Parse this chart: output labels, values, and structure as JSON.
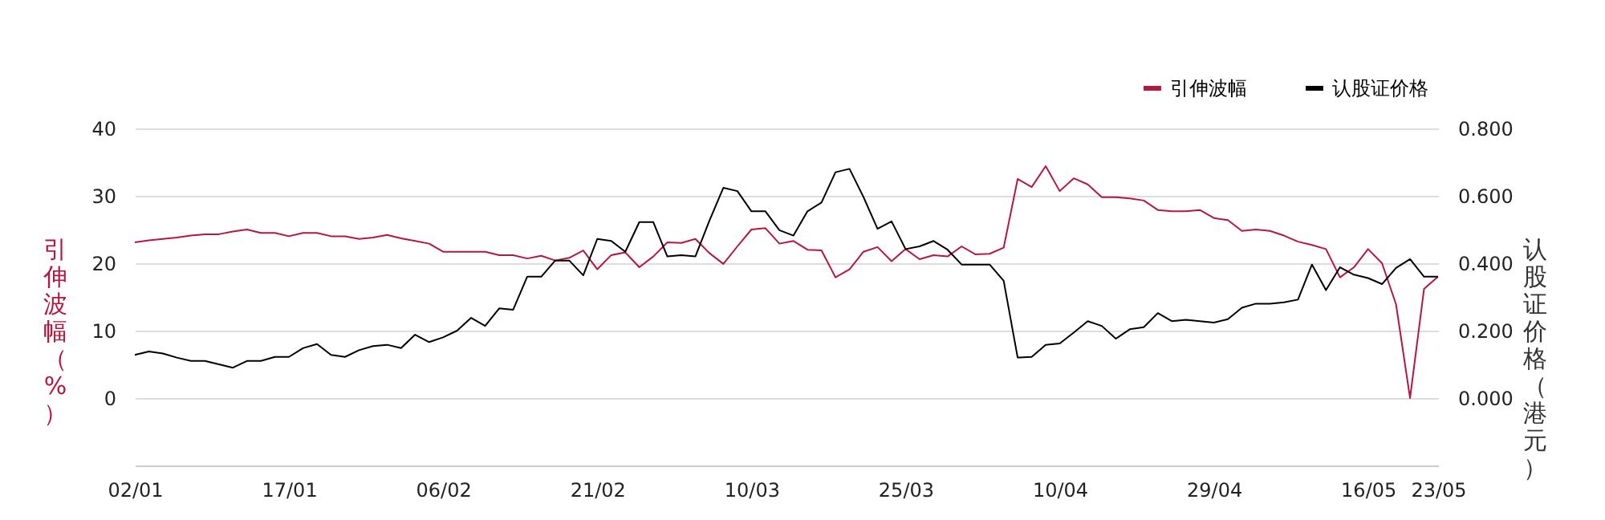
{
  "chart_data": {
    "type": "line",
    "ylabel": "引伸波幅（%）",
    "y2label": "认股证价格（港元）",
    "categories": [
      "02/01",
      null,
      null,
      null,
      null,
      null,
      null,
      null,
      null,
      null,
      null,
      "17/01",
      null,
      null,
      null,
      null,
      null,
      null,
      null,
      null,
      null,
      null,
      "06/02",
      null,
      null,
      null,
      null,
      null,
      null,
      null,
      null,
      null,
      null,
      "21/02",
      null,
      null,
      null,
      null,
      null,
      null,
      null,
      null,
      null,
      null,
      "10/03",
      null,
      null,
      null,
      null,
      null,
      null,
      null,
      null,
      null,
      null,
      "25/03",
      null,
      null,
      null,
      null,
      null,
      null,
      null,
      null,
      null,
      null,
      "10/04",
      null,
      null,
      null,
      null,
      null,
      null,
      null,
      null,
      null,
      null,
      "29/04",
      null,
      null,
      null,
      null,
      null,
      null,
      null,
      null,
      null,
      null,
      "16/05",
      null,
      null,
      null,
      null,
      "23/05"
    ],
    "series": [
      {
        "name": "引伸波幅",
        "color": "#b5173f",
        "values": [
          23.1,
          23.4,
          23.6,
          23.8,
          24.1,
          24.3,
          24.3,
          24.7,
          25,
          24.5,
          24.5,
          24,
          24.5,
          24.5,
          24,
          24,
          23.6,
          23.8,
          24.2,
          23.7,
          23.3,
          22.9,
          21.7,
          21.7,
          21.7,
          21.7,
          21.2,
          21.2,
          20.7,
          21.1,
          20.4,
          20.8,
          21.9,
          19.1,
          21.2,
          21.6,
          19.4,
          21,
          23.1,
          23,
          23.6,
          21.5,
          19.9,
          22.5,
          25,
          25.2,
          22.9,
          23.3,
          22,
          21.9,
          17.9,
          19.1,
          21.7,
          22.4,
          20.3,
          22.1,
          20.6,
          21.2,
          21,
          22.5,
          21.3,
          21.4,
          22.3,
          32.5,
          31.3,
          34.4,
          30.7,
          32.6,
          31.7,
          29.8,
          29.8,
          29.6,
          29.3,
          27.9,
          27.7,
          27.7,
          27.9,
          26.7,
          26.4,
          24.8,
          25,
          24.8,
          24.1,
          23.2,
          22.7,
          22.1,
          17.9,
          19.4,
          22.1,
          20,
          13.9,
          0,
          16.2,
          18
        ]
      },
      {
        "name": "认股证价格",
        "color": "#000000",
        "axis": "y2",
        "values": [
          0.128,
          0.138,
          0.132,
          0.12,
          0.11,
          0.11,
          0.1,
          0.09,
          0.11,
          0.11,
          0.122,
          0.122,
          0.148,
          0.16,
          0.128,
          0.122,
          0.142,
          0.154,
          0.158,
          0.148,
          0.188,
          0.166,
          0.18,
          0.2,
          0.238,
          0.214,
          0.266,
          0.262,
          0.36,
          0.36,
          0.408,
          0.408,
          0.364,
          0.472,
          0.466,
          0.434,
          0.522,
          0.522,
          0.42,
          0.424,
          0.42,
          0.526,
          0.624,
          0.614,
          0.554,
          0.554,
          0.498,
          0.482,
          0.554,
          0.58,
          0.67,
          0.68,
          0.596,
          0.502,
          0.524,
          0.442,
          0.45,
          0.466,
          0.44,
          0.396,
          0.396,
          0.396,
          0.348,
          0.12,
          0.122,
          0.158,
          0.162,
          0.194,
          0.228,
          0.214,
          0.176,
          0.204,
          0.21,
          0.252,
          0.228,
          0.232,
          0.228,
          0.224,
          0.234,
          0.268,
          0.28,
          0.28,
          0.284,
          0.292,
          0.396,
          0.32,
          0.388,
          0.366,
          0.356,
          0.338,
          0.386,
          0.412,
          0.36,
          0.36
        ]
      }
    ],
    "ylim": [
      -10,
      40
    ],
    "yticks": [
      0,
      10,
      20,
      30,
      40
    ],
    "y2lim": [
      -0.2,
      0.8
    ],
    "y2ticks": [
      {
        "value": 0,
        "label": "0.000"
      },
      {
        "value": 0.2,
        "label": "0.200"
      },
      {
        "value": 0.4,
        "label": "0.400"
      },
      {
        "value": 0.6,
        "label": "0.600"
      },
      {
        "value": 0.8,
        "label": "0.800"
      }
    ],
    "grid": "y",
    "legend": "top right",
    "marker": "none",
    "line_style": "solid"
  }
}
